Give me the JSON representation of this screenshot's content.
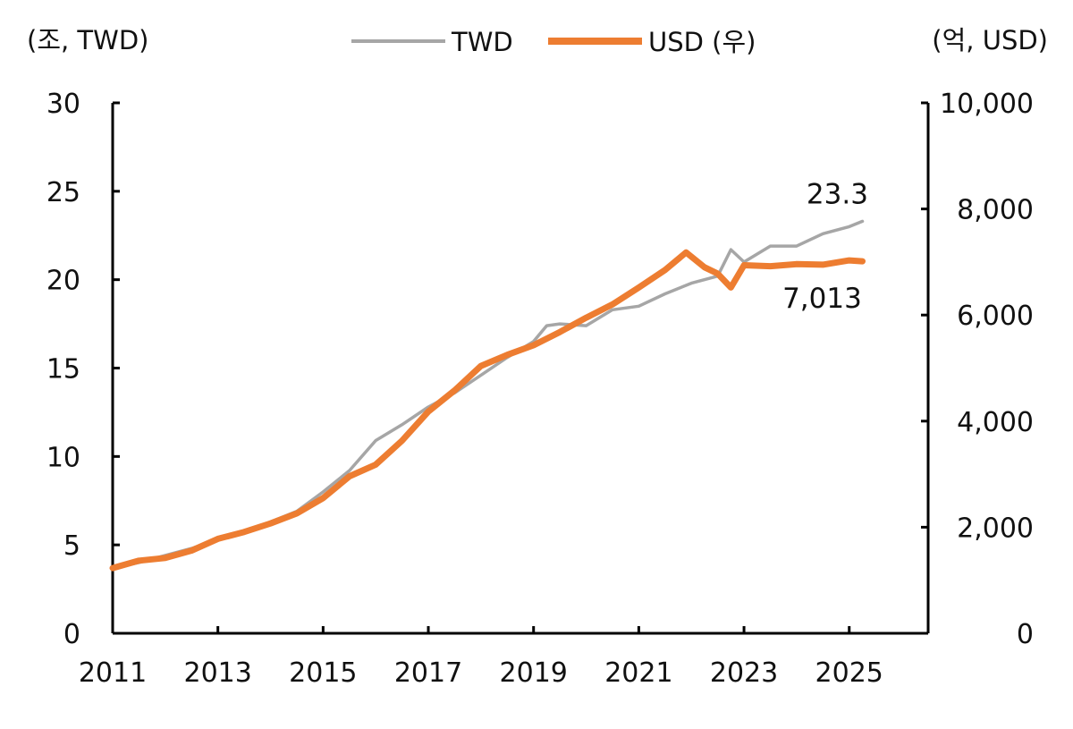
{
  "chart_data": {
    "type": "line",
    "left_axis": {
      "unit_label": "(조, TWD)",
      "ticks": [
        "0",
        "5",
        "10",
        "15",
        "20",
        "25",
        "30"
      ],
      "range": [
        0,
        30
      ]
    },
    "right_axis": {
      "unit_label": "(억, USD)",
      "ticks": [
        "0",
        "2,000",
        "4,000",
        "6,000",
        "8,000",
        "10,000"
      ],
      "range": [
        0,
        10000
      ]
    },
    "x_axis": {
      "ticks": [
        "2011",
        "2013",
        "2015",
        "2017",
        "2019",
        "2021",
        "2023",
        "2025"
      ],
      "range": [
        2011.0,
        2026.5
      ]
    },
    "legend_placement": "top-center",
    "grid": false,
    "colors": {
      "TWD": "#a6a6a6",
      "USD": "#ed7d31",
      "axis": "#000000"
    },
    "series": [
      {
        "name": "TWD",
        "axis": "left",
        "x": [
          2011.0,
          2011.5,
          2012.0,
          2012.5,
          2013.0,
          2013.5,
          2014.0,
          2014.5,
          2015.0,
          2015.5,
          2016.0,
          2016.5,
          2017.0,
          2017.5,
          2018.0,
          2018.5,
          2019.0,
          2019.25,
          2019.5,
          2020.0,
          2020.5,
          2021.0,
          2021.5,
          2022.0,
          2022.5,
          2022.75,
          2023.0,
          2023.5,
          2024.0,
          2024.5,
          2025.0,
          2025.25
        ],
        "values": [
          3.7,
          4.0,
          4.4,
          4.8,
          5.3,
          5.7,
          6.3,
          6.9,
          8.0,
          9.2,
          10.9,
          11.8,
          12.8,
          13.6,
          14.6,
          15.6,
          16.5,
          17.4,
          17.5,
          17.4,
          18.3,
          18.5,
          19.2,
          19.8,
          20.2,
          21.7,
          21.0,
          21.9,
          21.9,
          22.6,
          23.0,
          23.3
        ]
      },
      {
        "name": "USD (우)",
        "axis": "right",
        "x": [
          2011.0,
          2011.5,
          2012.0,
          2012.5,
          2013.0,
          2013.5,
          2014.0,
          2014.5,
          2015.0,
          2015.5,
          2016.0,
          2016.5,
          2017.0,
          2017.5,
          2018.0,
          2018.5,
          2019.0,
          2019.5,
          2020.0,
          2020.5,
          2021.0,
          2021.5,
          2021.9,
          2022.25,
          2022.5,
          2022.75,
          2023.0,
          2023.5,
          2024.0,
          2024.5,
          2025.0,
          2025.25
        ],
        "values": [
          1230,
          1370,
          1420,
          1560,
          1780,
          1910,
          2070,
          2260,
          2550,
          2960,
          3180,
          3630,
          4180,
          4580,
          5040,
          5250,
          5430,
          5680,
          5950,
          6200,
          6520,
          6850,
          7180,
          6900,
          6780,
          6520,
          6940,
          6920,
          6960,
          6950,
          7030,
          7013
        ]
      }
    ],
    "annotations": [
      {
        "text": "23.3",
        "series": "TWD"
      },
      {
        "text": "7,013",
        "series": "USD (우)"
      }
    ]
  }
}
